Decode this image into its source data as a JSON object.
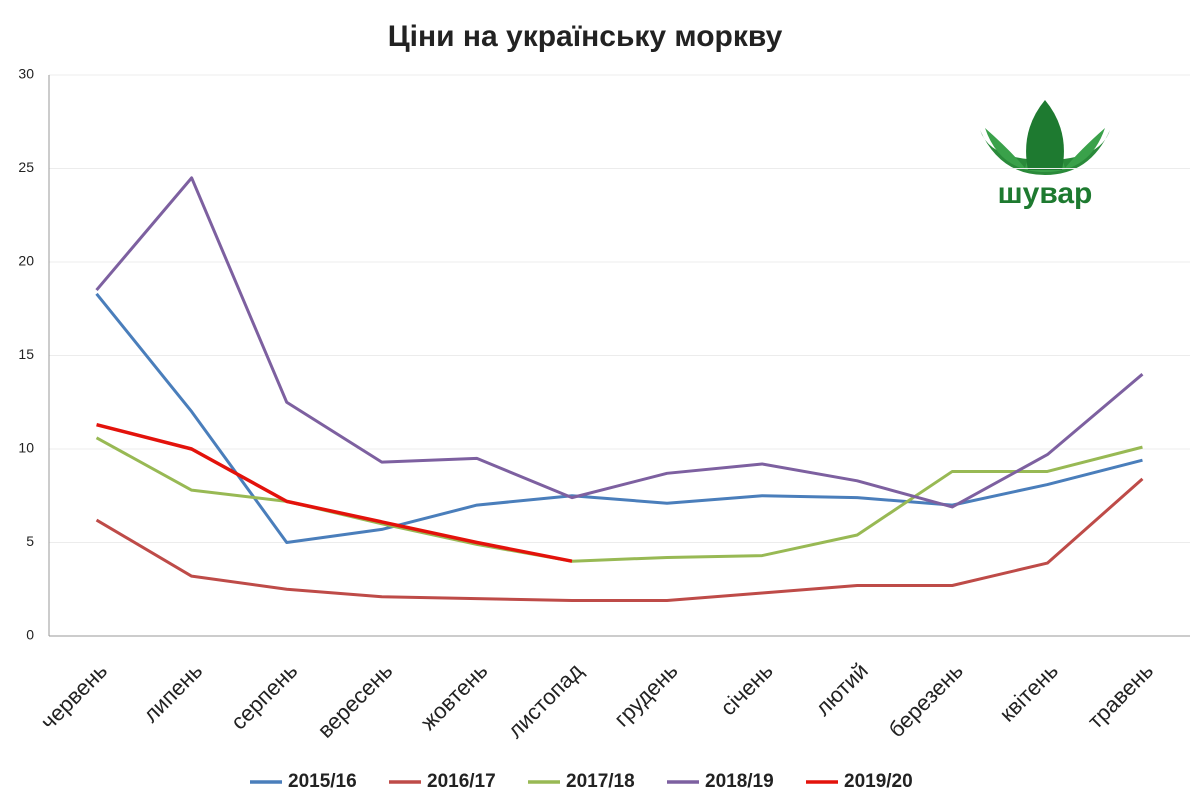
{
  "chart_data": {
    "type": "line",
    "title": "Ціни на українську моркву",
    "categories": [
      "червень",
      "липень",
      "серпень",
      "вересень",
      "жовтень",
      "листопад",
      "грудень",
      "січень",
      "лютий",
      "березень",
      "квітень",
      "травень"
    ],
    "series": [
      {
        "name": "2015/16",
        "color": "#4a7ebb",
        "values": [
          18.3,
          12.0,
          5.0,
          5.7,
          7.0,
          7.5,
          7.1,
          7.5,
          7.4,
          7.0,
          8.1,
          9.4
        ]
      },
      {
        "name": "2016/17",
        "color": "#be4b48",
        "values": [
          6.2,
          3.2,
          2.5,
          2.1,
          2.0,
          1.9,
          1.9,
          2.3,
          2.7,
          2.7,
          3.9,
          8.4
        ]
      },
      {
        "name": "2017/18",
        "color": "#98b954",
        "values": [
          10.6,
          7.8,
          7.2,
          6.0,
          4.9,
          4.0,
          4.2,
          4.3,
          5.4,
          8.8,
          8.8,
          10.1
        ]
      },
      {
        "name": "2018/19",
        "color": "#7d60a0",
        "values": [
          18.5,
          24.5,
          12.5,
          9.3,
          9.5,
          7.4,
          8.7,
          9.2,
          8.3,
          6.9,
          9.7,
          14.0
        ]
      },
      {
        "name": "2019/20",
        "color": "#e3120b",
        "values": [
          11.3,
          10.0,
          7.2,
          6.1,
          5.0,
          4.0,
          null,
          null,
          null,
          null,
          null,
          null
        ]
      }
    ],
    "ylim": [
      0,
      30
    ],
    "yticks": [
      0,
      5,
      10,
      15,
      20,
      25,
      30
    ],
    "grid": true,
    "legend": "bottom",
    "logo": "шувар"
  }
}
